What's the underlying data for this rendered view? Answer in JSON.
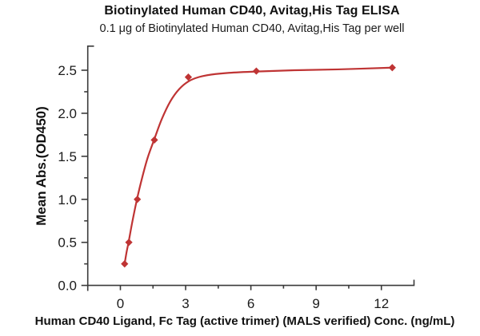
{
  "colors": {
    "series": "#bf3434",
    "axis": "#3a3a3a",
    "text": "#1b1b1b",
    "background": "#ffffff"
  },
  "chart_data": {
    "type": "scatter",
    "title": "Biotinylated Human CD40, Avitag,His Tag ELISA",
    "subtitle": "0.1 μg of Biotinylated Human CD40, Avitag,His Tag per well",
    "xlabel": "Human CD40 Ligand, Fc Tag (active trimer) (MALS verified) Conc. (ng/mL)",
    "ylabel": "Mean Abs.(OD450)",
    "grid": false,
    "legend": null,
    "xlim": [
      -1.5,
      13.5
    ],
    "ylim": [
      0,
      2.78
    ],
    "x_ticks": {
      "major": [
        0,
        3,
        6,
        9,
        12
      ],
      "labels": [
        "0",
        "3",
        "6",
        "9",
        "12"
      ],
      "minor": [
        1.5,
        4.5,
        7.5,
        10.5
      ]
    },
    "y_ticks": {
      "major": [
        0,
        0.5,
        1.0,
        1.5,
        2.0,
        2.5
      ],
      "labels": [
        "0.0",
        "0.5",
        "1.0",
        "1.5",
        "2.0",
        "2.5"
      ],
      "minor": [
        0.25,
        0.75,
        1.25,
        1.75,
        2.25
      ]
    },
    "series": [
      {
        "marker": "diamond",
        "color": "#bf3434",
        "x": [
          0.195,
          0.39,
          0.78,
          1.5625,
          3.125,
          6.25,
          12.5
        ],
        "y": [
          0.25,
          0.5,
          1.0,
          1.69,
          2.42,
          2.49,
          2.53
        ]
      }
    ],
    "fit_curve": [
      [
        0.195,
        0.25
      ],
      [
        0.28,
        0.38
      ],
      [
        0.39,
        0.52
      ],
      [
        0.55,
        0.74
      ],
      [
        0.78,
        1.02
      ],
      [
        1.0,
        1.25
      ],
      [
        1.25,
        1.48
      ],
      [
        1.5625,
        1.7
      ],
      [
        1.9,
        1.93
      ],
      [
        2.3,
        2.14
      ],
      [
        2.7,
        2.28
      ],
      [
        3.125,
        2.37
      ],
      [
        3.6,
        2.42
      ],
      [
        4.2,
        2.45
      ],
      [
        5.0,
        2.47
      ],
      [
        6.25,
        2.485
      ],
      [
        8.0,
        2.5
      ],
      [
        10.0,
        2.51
      ],
      [
        12.5,
        2.53
      ]
    ]
  }
}
